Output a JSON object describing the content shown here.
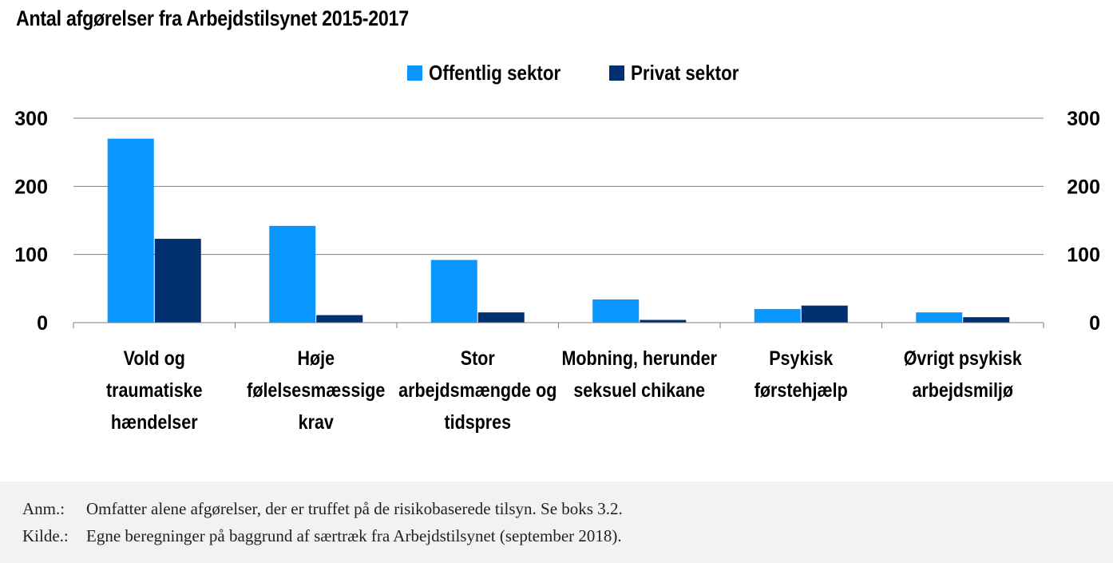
{
  "title": "Antal afgørelser  fra Arbejdstilsynet  2015-2017",
  "colors": {
    "offentlig": "#0a96ff",
    "privat": "#00306f",
    "grid": "#7f7f7f",
    "notes_bg": "#f2f2f2"
  },
  "chart_data": {
    "type": "bar",
    "categories": [
      [
        "Vold og",
        "traumatiske",
        "hændelser"
      ],
      [
        "Høje",
        "følelsesmæssige",
        "krav"
      ],
      [
        "Stor",
        "arbejdsmængde og",
        "tidspres"
      ],
      [
        "Mobning, herunder",
        "seksuel chikane"
      ],
      [
        "Psykisk",
        "førstehjælp"
      ],
      [
        "Øvrigt psykisk",
        "arbejdsmiljø"
      ]
    ],
    "series": [
      {
        "name": "Offentlig sektor",
        "values": [
          270,
          142,
          92,
          34,
          20,
          15
        ]
      },
      {
        "name": "Privat sektor",
        "values": [
          123,
          11,
          15,
          4,
          25,
          8
        ]
      }
    ],
    "yticks": [
      "0",
      "100",
      "200",
      "300"
    ],
    "ylim": [
      0,
      300
    ],
    "grid": true,
    "secondary_axis": true,
    "legend_position": "top-center"
  },
  "notes": [
    {
      "key": "Anm.:",
      "text": "Omfatter alene afgørelser, der er truffet på de risikobaserede tilsyn. Se boks 3.2."
    },
    {
      "key": "Kilde.:",
      "text": "Egne beregninger på baggrund af særtræk fra Arbejdstilsynet (september 2018)."
    }
  ]
}
